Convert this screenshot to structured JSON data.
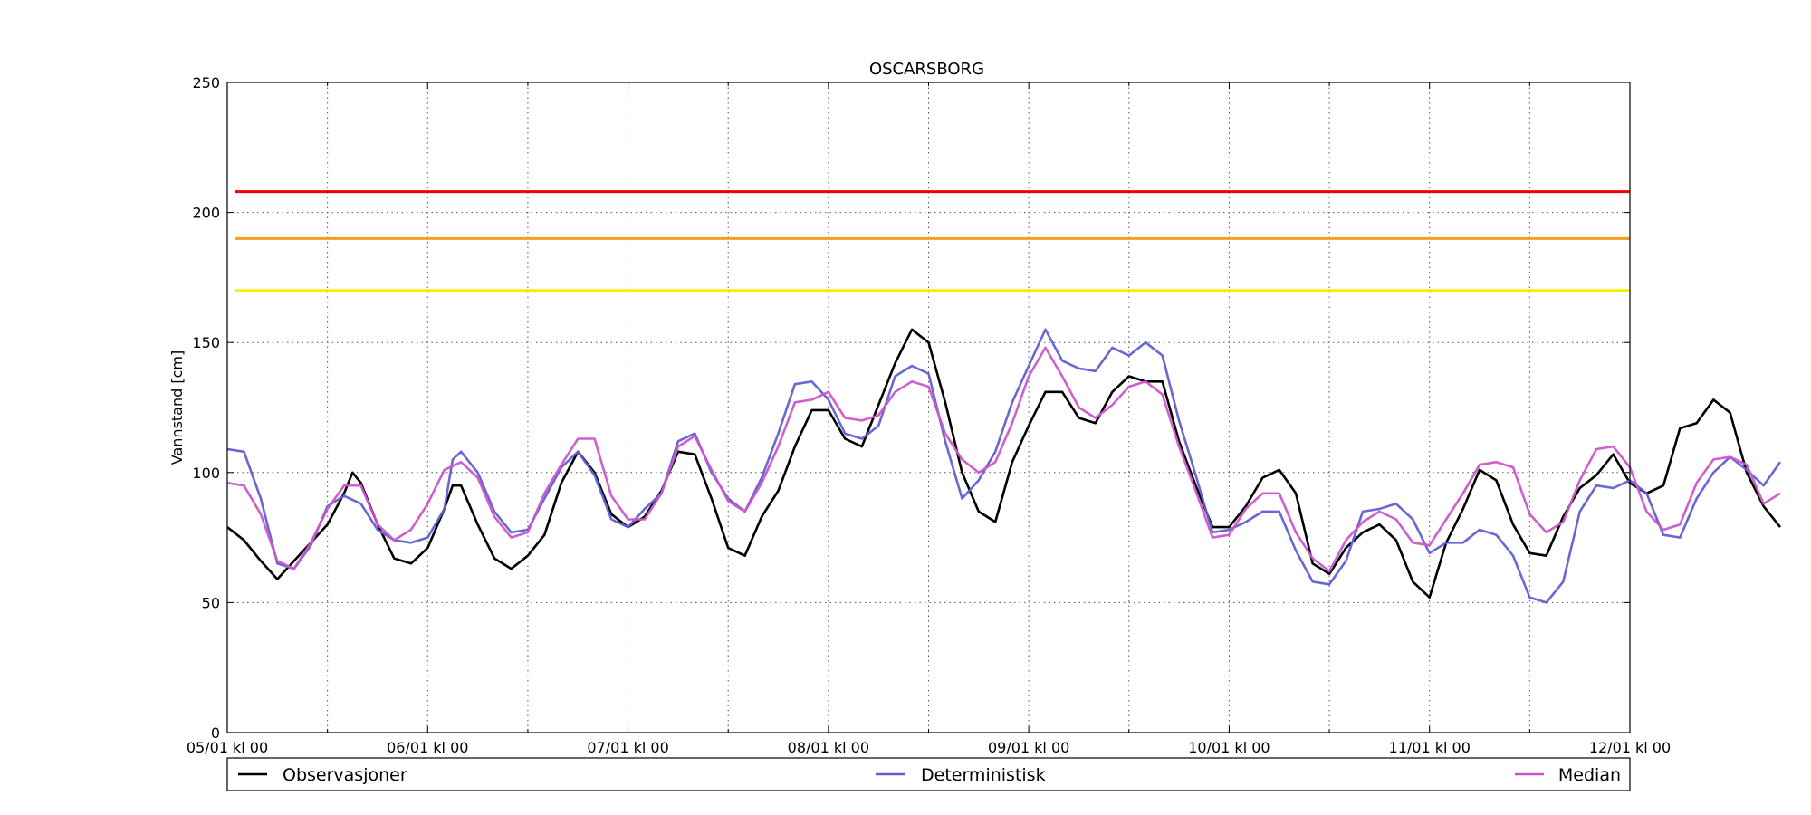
{
  "chart_data": {
    "type": "line",
    "title": "OSCARSBORG",
    "xlabel": "",
    "ylabel": "Vannstand [cm]",
    "ylim": [
      0,
      250
    ],
    "y_ticks": [
      0,
      50,
      100,
      150,
      200,
      250
    ],
    "x_ticks": [
      "05/01 kl 00",
      "06/01 kl 00",
      "07/01 kl 00",
      "08/01 kl 00",
      "09/01 kl 00",
      "10/01 kl 00",
      "11/01 kl 00",
      "12/01 kl 00"
    ],
    "x_tick_days": [
      0,
      1,
      2,
      3,
      4,
      5,
      6,
      7
    ],
    "x_minor_days": [
      0.5,
      1.5,
      2.5,
      3.5,
      4.5,
      5.5,
      6.5
    ],
    "xlim_days": [
      0,
      7
    ],
    "grid": true,
    "legend_placement": "bottom",
    "thresholds": [
      {
        "value": 208,
        "color": "#ee0000"
      },
      {
        "value": 190,
        "color": "#f0a020"
      },
      {
        "value": 170,
        "color": "#f5ee00"
      }
    ],
    "series": [
      {
        "name": "Observasjoner",
        "color": "#000000",
        "points": [
          [
            0.0,
            79
          ],
          [
            0.083,
            74
          ],
          [
            0.167,
            66
          ],
          [
            0.25,
            59
          ],
          [
            0.333,
            66
          ],
          [
            0.417,
            73
          ],
          [
            0.5,
            80
          ],
          [
            0.583,
            92
          ],
          [
            0.625,
            100
          ],
          [
            0.667,
            96
          ],
          [
            0.75,
            80
          ],
          [
            0.833,
            67
          ],
          [
            0.917,
            65
          ],
          [
            1.0,
            71
          ],
          [
            1.083,
            86
          ],
          [
            1.125,
            95
          ],
          [
            1.167,
            95
          ],
          [
            1.25,
            80
          ],
          [
            1.333,
            67
          ],
          [
            1.417,
            63
          ],
          [
            1.5,
            68
          ],
          [
            1.583,
            76
          ],
          [
            1.667,
            96
          ],
          [
            1.75,
            108
          ],
          [
            1.833,
            100
          ],
          [
            1.917,
            84
          ],
          [
            2.0,
            79
          ],
          [
            2.083,
            83
          ],
          [
            2.167,
            93
          ],
          [
            2.25,
            108
          ],
          [
            2.333,
            107
          ],
          [
            2.417,
            90
          ],
          [
            2.5,
            71
          ],
          [
            2.583,
            68
          ],
          [
            2.667,
            83
          ],
          [
            2.75,
            93
          ],
          [
            2.833,
            110
          ],
          [
            2.917,
            124
          ],
          [
            3.0,
            124
          ],
          [
            3.083,
            113
          ],
          [
            3.167,
            110
          ],
          [
            3.25,
            126
          ],
          [
            3.333,
            142
          ],
          [
            3.417,
            155
          ],
          [
            3.5,
            150
          ],
          [
            3.583,
            127
          ],
          [
            3.667,
            100
          ],
          [
            3.75,
            85
          ],
          [
            3.833,
            81
          ],
          [
            3.917,
            104
          ],
          [
            4.0,
            118
          ],
          [
            4.083,
            131
          ],
          [
            4.167,
            131
          ],
          [
            4.25,
            121
          ],
          [
            4.333,
            119
          ],
          [
            4.417,
            131
          ],
          [
            4.5,
            137
          ],
          [
            4.583,
            135
          ],
          [
            4.667,
            135
          ],
          [
            4.75,
            112
          ],
          [
            4.833,
            95
          ],
          [
            4.917,
            79
          ],
          [
            5.0,
            79
          ],
          [
            5.083,
            87
          ],
          [
            5.167,
            98
          ],
          [
            5.25,
            101
          ],
          [
            5.333,
            92
          ],
          [
            5.417,
            65
          ],
          [
            5.5,
            61
          ],
          [
            5.583,
            71
          ],
          [
            5.667,
            77
          ],
          [
            5.75,
            80
          ],
          [
            5.833,
            74
          ],
          [
            5.917,
            58
          ],
          [
            6.0,
            52
          ],
          [
            6.083,
            73
          ],
          [
            6.167,
            86
          ],
          [
            6.25,
            101
          ],
          [
            6.333,
            97
          ],
          [
            6.417,
            80
          ],
          [
            6.5,
            69
          ],
          [
            6.583,
            68
          ],
          [
            6.667,
            83
          ],
          [
            6.75,
            94
          ],
          [
            6.833,
            99
          ],
          [
            6.917,
            107
          ],
          [
            7.0,
            96
          ],
          [
            7.083,
            92
          ],
          [
            7.167,
            95
          ],
          [
            7.25,
            117
          ],
          [
            7.333,
            119
          ],
          [
            7.417,
            128
          ],
          [
            7.5,
            123
          ],
          [
            7.583,
            100
          ],
          [
            7.667,
            87
          ],
          [
            7.75,
            79
          ]
        ]
      },
      {
        "name": "Deterministisk",
        "color": "#6060d0",
        "points": [
          [
            0.0,
            109
          ],
          [
            0.083,
            108
          ],
          [
            0.167,
            90
          ],
          [
            0.25,
            65
          ],
          [
            0.333,
            63
          ],
          [
            0.417,
            72
          ],
          [
            0.5,
            87
          ],
          [
            0.583,
            91
          ],
          [
            0.667,
            88
          ],
          [
            0.75,
            78
          ],
          [
            0.833,
            74
          ],
          [
            0.917,
            73
          ],
          [
            1.0,
            75
          ],
          [
            1.083,
            86
          ],
          [
            1.125,
            105
          ],
          [
            1.167,
            108
          ],
          [
            1.25,
            100
          ],
          [
            1.333,
            85
          ],
          [
            1.417,
            77
          ],
          [
            1.5,
            78
          ],
          [
            1.583,
            90
          ],
          [
            1.667,
            102
          ],
          [
            1.75,
            108
          ],
          [
            1.833,
            99
          ],
          [
            1.917,
            82
          ],
          [
            2.0,
            79
          ],
          [
            2.083,
            86
          ],
          [
            2.167,
            92
          ],
          [
            2.25,
            112
          ],
          [
            2.333,
            115
          ],
          [
            2.417,
            100
          ],
          [
            2.5,
            90
          ],
          [
            2.583,
            85
          ],
          [
            2.667,
            98
          ],
          [
            2.75,
            115
          ],
          [
            2.833,
            134
          ],
          [
            2.917,
            135
          ],
          [
            3.0,
            128
          ],
          [
            3.083,
            115
          ],
          [
            3.167,
            113
          ],
          [
            3.25,
            118
          ],
          [
            3.333,
            137
          ],
          [
            3.417,
            141
          ],
          [
            3.5,
            138
          ],
          [
            3.583,
            112
          ],
          [
            3.667,
            90
          ],
          [
            3.75,
            97
          ],
          [
            3.833,
            108
          ],
          [
            3.917,
            127
          ],
          [
            4.0,
            141
          ],
          [
            4.083,
            155
          ],
          [
            4.167,
            143
          ],
          [
            4.25,
            140
          ],
          [
            4.333,
            139
          ],
          [
            4.417,
            148
          ],
          [
            4.5,
            145
          ],
          [
            4.583,
            150
          ],
          [
            4.667,
            145
          ],
          [
            4.75,
            120
          ],
          [
            4.833,
            99
          ],
          [
            4.917,
            77
          ],
          [
            5.0,
            78
          ],
          [
            5.083,
            81
          ],
          [
            5.167,
            85
          ],
          [
            5.25,
            85
          ],
          [
            5.333,
            70
          ],
          [
            5.417,
            58
          ],
          [
            5.5,
            57
          ],
          [
            5.583,
            66
          ],
          [
            5.667,
            85
          ],
          [
            5.75,
            86
          ],
          [
            5.833,
            88
          ],
          [
            5.917,
            82
          ],
          [
            6.0,
            69
          ],
          [
            6.083,
            73
          ],
          [
            6.167,
            73
          ],
          [
            6.25,
            78
          ],
          [
            6.333,
            76
          ],
          [
            6.417,
            68
          ],
          [
            6.5,
            52
          ],
          [
            6.583,
            50
          ],
          [
            6.667,
            58
          ],
          [
            6.75,
            85
          ],
          [
            6.833,
            95
          ],
          [
            6.917,
            94
          ],
          [
            7.0,
            97
          ],
          [
            7.083,
            92
          ],
          [
            7.167,
            76
          ],
          [
            7.25,
            75
          ],
          [
            7.333,
            90
          ],
          [
            7.417,
            100
          ],
          [
            7.5,
            106
          ],
          [
            7.583,
            101
          ],
          [
            7.667,
            95
          ],
          [
            7.75,
            104
          ]
        ]
      },
      {
        "name": "Median",
        "color": "#cc55cc",
        "points": [
          [
            0.0,
            96
          ],
          [
            0.083,
            95
          ],
          [
            0.167,
            84
          ],
          [
            0.25,
            66
          ],
          [
            0.333,
            63
          ],
          [
            0.417,
            73
          ],
          [
            0.5,
            86
          ],
          [
            0.583,
            95
          ],
          [
            0.667,
            95
          ],
          [
            0.75,
            80
          ],
          [
            0.833,
            74
          ],
          [
            0.917,
            78
          ],
          [
            1.0,
            88
          ],
          [
            1.083,
            101
          ],
          [
            1.167,
            104
          ],
          [
            1.25,
            98
          ],
          [
            1.333,
            83
          ],
          [
            1.417,
            75
          ],
          [
            1.5,
            77
          ],
          [
            1.583,
            92
          ],
          [
            1.667,
            103
          ],
          [
            1.75,
            113
          ],
          [
            1.833,
            113
          ],
          [
            1.917,
            91
          ],
          [
            2.0,
            82
          ],
          [
            2.083,
            82
          ],
          [
            2.167,
            92
          ],
          [
            2.25,
            110
          ],
          [
            2.333,
            114
          ],
          [
            2.417,
            101
          ],
          [
            2.5,
            89
          ],
          [
            2.583,
            85
          ],
          [
            2.667,
            96
          ],
          [
            2.75,
            110
          ],
          [
            2.833,
            127
          ],
          [
            2.917,
            128
          ],
          [
            3.0,
            131
          ],
          [
            3.083,
            121
          ],
          [
            3.167,
            120
          ],
          [
            3.25,
            122
          ],
          [
            3.333,
            131
          ],
          [
            3.417,
            135
          ],
          [
            3.5,
            133
          ],
          [
            3.583,
            115
          ],
          [
            3.667,
            105
          ],
          [
            3.75,
            100
          ],
          [
            3.833,
            104
          ],
          [
            3.917,
            119
          ],
          [
            4.0,
            137
          ],
          [
            4.083,
            148
          ],
          [
            4.167,
            137
          ],
          [
            4.25,
            125
          ],
          [
            4.333,
            121
          ],
          [
            4.417,
            126
          ],
          [
            4.5,
            133
          ],
          [
            4.583,
            135
          ],
          [
            4.667,
            130
          ],
          [
            4.75,
            110
          ],
          [
            4.833,
            93
          ],
          [
            4.917,
            75
          ],
          [
            5.0,
            76
          ],
          [
            5.083,
            86
          ],
          [
            5.167,
            92
          ],
          [
            5.25,
            92
          ],
          [
            5.333,
            77
          ],
          [
            5.417,
            67
          ],
          [
            5.5,
            62
          ],
          [
            5.583,
            74
          ],
          [
            5.667,
            81
          ],
          [
            5.75,
            85
          ],
          [
            5.833,
            82
          ],
          [
            5.917,
            73
          ],
          [
            6.0,
            72
          ],
          [
            6.083,
            82
          ],
          [
            6.167,
            92
          ],
          [
            6.25,
            103
          ],
          [
            6.333,
            104
          ],
          [
            6.417,
            102
          ],
          [
            6.5,
            84
          ],
          [
            6.583,
            77
          ],
          [
            6.667,
            81
          ],
          [
            6.75,
            97
          ],
          [
            6.833,
            109
          ],
          [
            6.917,
            110
          ],
          [
            7.0,
            102
          ],
          [
            7.083,
            85
          ],
          [
            7.167,
            78
          ],
          [
            7.25,
            80
          ],
          [
            7.333,
            96
          ],
          [
            7.417,
            105
          ],
          [
            7.5,
            106
          ],
          [
            7.583,
            103
          ],
          [
            7.667,
            88
          ],
          [
            7.75,
            92
          ]
        ]
      }
    ]
  }
}
